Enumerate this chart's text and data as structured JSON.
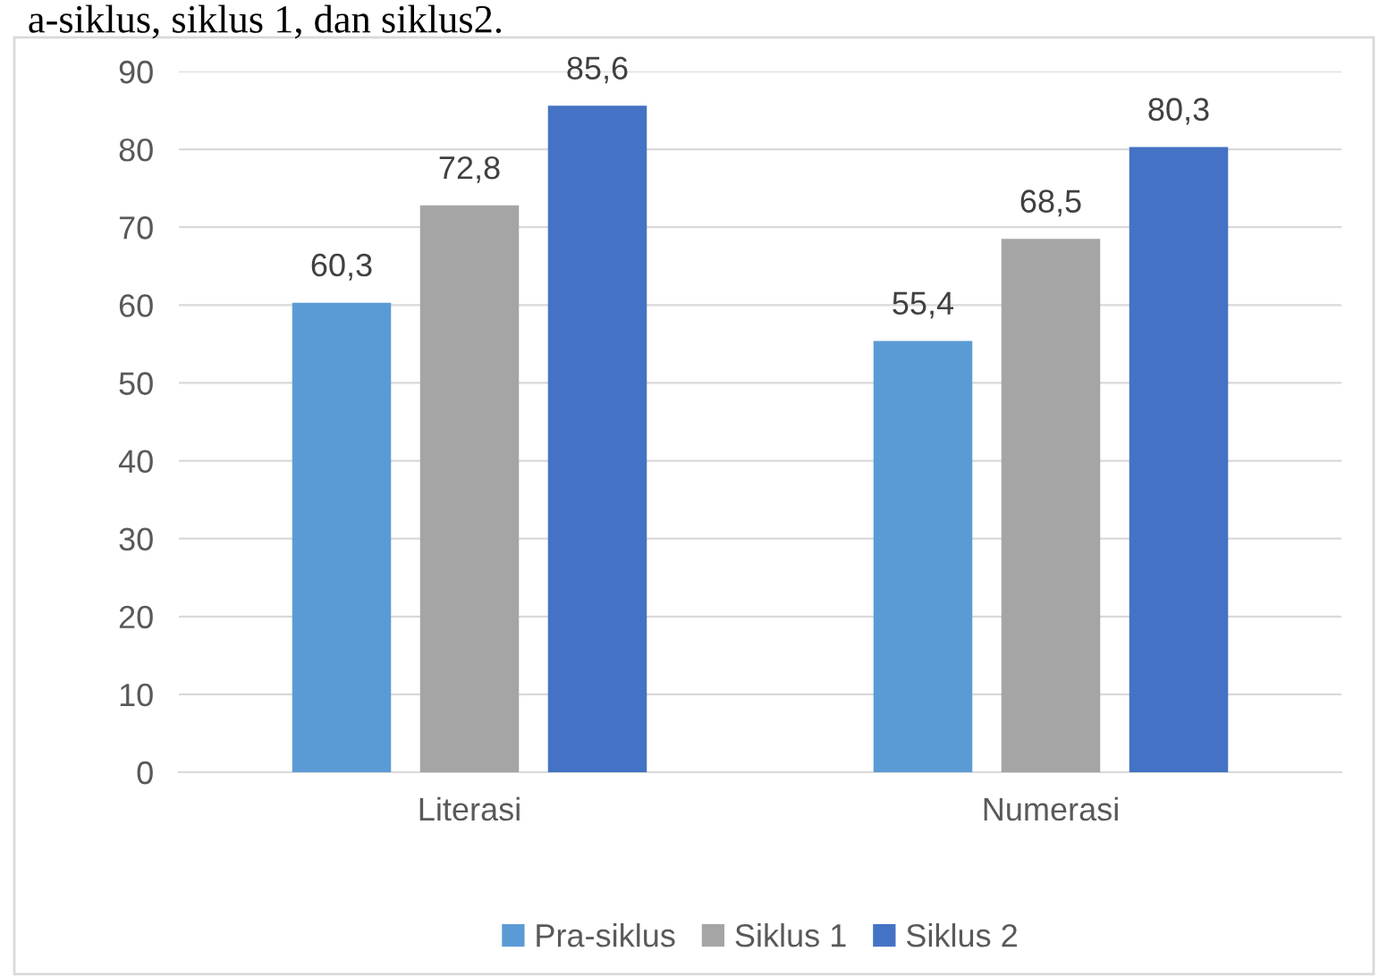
{
  "chart_data": {
    "type": "bar",
    "annotations": [
      "a-siklus, siklus 1, dan siklus2."
    ],
    "categories": [
      "Literasi",
      "Numerasi"
    ],
    "series": [
      {
        "name": "Pra-siklus",
        "color": "#5b9bd5",
        "values": [
          60.3,
          55.4
        ],
        "value_labels": [
          "60,3",
          "55,4"
        ]
      },
      {
        "name": "Siklus 1",
        "color": "#a5a5a5",
        "values": [
          72.8,
          68.5
        ],
        "value_labels": [
          "72,8",
          "68,5"
        ]
      },
      {
        "name": "Siklus 2",
        "color": "#4472c4",
        "values": [
          85.6,
          80.3
        ],
        "value_labels": [
          "85,6",
          "80,3"
        ]
      }
    ],
    "ylim": [
      0,
      90
    ],
    "yticks": [
      0,
      10,
      20,
      30,
      40,
      50,
      60,
      70,
      80,
      90
    ],
    "grid": "y",
    "legend": "bottom"
  }
}
